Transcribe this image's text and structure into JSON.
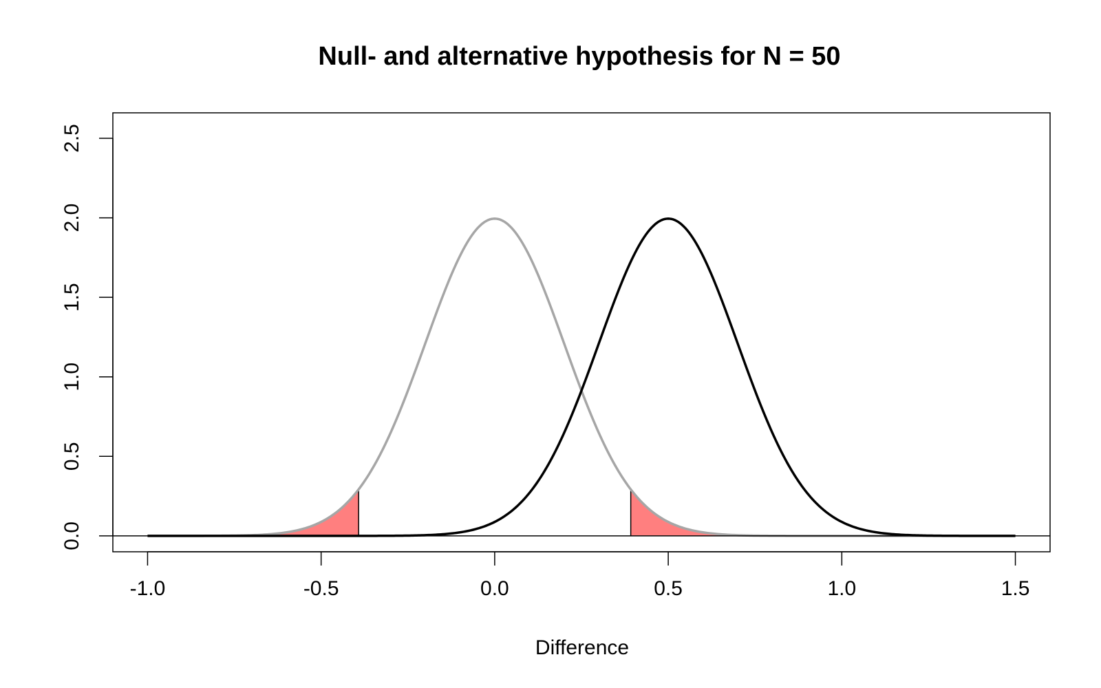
{
  "chart_data": {
    "type": "line",
    "title": "Null- and alternative hypothesis for N =  50",
    "xlabel": "Difference",
    "ylabel": "",
    "xlim": [
      -1.1,
      1.6
    ],
    "ylim": [
      -0.1,
      2.66
    ],
    "x_ticks": [
      -1.0,
      -0.5,
      0.0,
      0.5,
      1.0,
      1.5
    ],
    "x_tick_labels": [
      "-1.0",
      "-0.5",
      "0.0",
      "0.5",
      "1.0",
      "1.5"
    ],
    "y_ticks": [
      0.0,
      0.5,
      1.0,
      1.5,
      2.0,
      2.5
    ],
    "y_tick_labels": [
      "0.0",
      "0.5",
      "1.0",
      "1.5",
      "2.0",
      "2.5"
    ],
    "grid": false,
    "x_range": [
      -1.0,
      1.5
    ],
    "series": [
      {
        "role": "null",
        "distribution": "normal",
        "mean": 0.0,
        "sd": 0.2,
        "color": "#a6a6a6"
      },
      {
        "role": "alternative",
        "distribution": "normal",
        "mean": 0.5,
        "sd": 0.2,
        "color": "#000000"
      }
    ],
    "critical_values": [
      -0.392,
      0.392
    ],
    "rejection_region_color": "#ff7f7f",
    "baseline_y": 0.0
  }
}
